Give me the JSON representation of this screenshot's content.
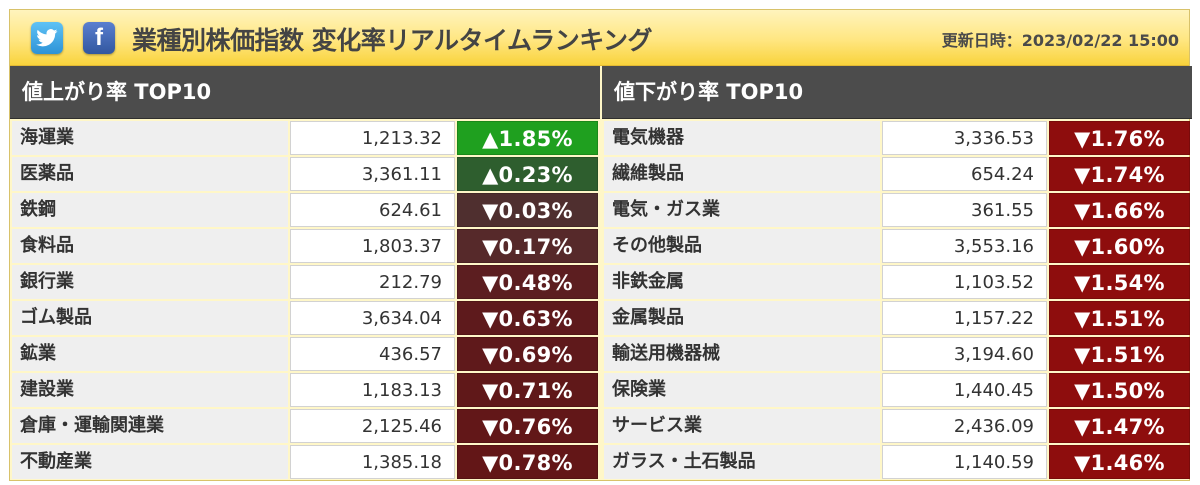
{
  "header": {
    "title": "業種別株価指数 変化率リアルタイムランキング",
    "updated_label": "更新日時：2023/02/22 15:00"
  },
  "icons": {
    "twitter": "twitter-icon",
    "facebook": "facebook-icon"
  },
  "colors": {
    "up_strong": "#1fa01f",
    "up_mild": "#2e5e2e",
    "down_mild": "#4f2f2f",
    "down_mid": "#5e1818",
    "down_strong": "#8e0d0d"
  },
  "gainers": {
    "title": "値上がり率 TOP10",
    "rows": [
      {
        "name": "海運業",
        "value": "1,213.32",
        "change": "▲1.85%",
        "color": "#1fa01f"
      },
      {
        "name": "医薬品",
        "value": "3,361.11",
        "change": "▲0.23%",
        "color": "#2e5e2e"
      },
      {
        "name": "鉄鋼",
        "value": "624.61",
        "change": "▼0.03%",
        "color": "#4f2f2f"
      },
      {
        "name": "食料品",
        "value": "1,803.37",
        "change": "▼0.17%",
        "color": "#56292a"
      },
      {
        "name": "銀行業",
        "value": "212.79",
        "change": "▼0.48%",
        "color": "#5c1e20"
      },
      {
        "name": "ゴム製品",
        "value": "3,634.04",
        "change": "▼0.63%",
        "color": "#5e1a1c"
      },
      {
        "name": "鉱業",
        "value": "436.57",
        "change": "▼0.69%",
        "color": "#5f191b"
      },
      {
        "name": "建設業",
        "value": "1,183.13",
        "change": "▼0.71%",
        "color": "#601819"
      },
      {
        "name": "倉庫・運輸関連業",
        "value": "2,125.46",
        "change": "▼0.76%",
        "color": "#621718"
      },
      {
        "name": "不動産業",
        "value": "1,385.18",
        "change": "▼0.78%",
        "color": "#631617"
      }
    ]
  },
  "losers": {
    "title": "値下がり率 TOP10",
    "rows": [
      {
        "name": "電気機器",
        "value": "3,336.53",
        "change": "▼1.76%",
        "color": "#8e0d0d"
      },
      {
        "name": "繊維製品",
        "value": "654.24",
        "change": "▼1.74%",
        "color": "#8e0d0d"
      },
      {
        "name": "電気・ガス業",
        "value": "361.55",
        "change": "▼1.66%",
        "color": "#8e0d0d"
      },
      {
        "name": "その他製品",
        "value": "3,553.16",
        "change": "▼1.60%",
        "color": "#8e0d0d"
      },
      {
        "name": "非鉄金属",
        "value": "1,103.52",
        "change": "▼1.54%",
        "color": "#8e0d0d"
      },
      {
        "name": "金属製品",
        "value": "1,157.22",
        "change": "▼1.51%",
        "color": "#8e0d0d"
      },
      {
        "name": "輸送用機器械",
        "value": "3,194.60",
        "change": "▼1.51%",
        "color": "#8e0d0d"
      },
      {
        "name": "保険業",
        "value": "1,440.45",
        "change": "▼1.50%",
        "color": "#8e0d0d"
      },
      {
        "name": "サービス業",
        "value": "2,436.09",
        "change": "▼1.47%",
        "color": "#8e0d0d"
      },
      {
        "name": "ガラス・土石製品",
        "value": "1,140.59",
        "change": "▼1.46%",
        "color": "#8e0d0d"
      }
    ]
  }
}
